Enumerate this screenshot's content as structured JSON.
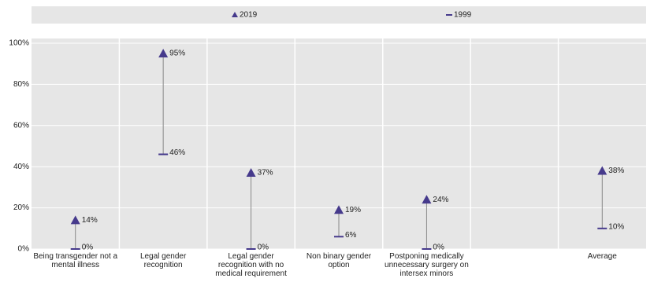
{
  "chart_data": {
    "type": "dumbbell",
    "categories": [
      "Being transgender not a mental illness",
      "Legal gender recognition",
      "Legal gender recognition with no medical requirement",
      "Non binary gender option",
      "Postponing medically unnecessary surgery on intersex minors",
      null,
      "Average"
    ],
    "series": [
      {
        "name": "2019",
        "color": "#463a8c",
        "marker": "triangle",
        "values": [
          14,
          95,
          37,
          19,
          24,
          null,
          38
        ],
        "value_labels": [
          "14%",
          "95%",
          "37%",
          "19%",
          "24%",
          null,
          "38%"
        ]
      },
      {
        "name": "1999",
        "color": "#463a8c",
        "marker": "dash",
        "values": [
          0,
          46,
          0,
          6,
          0,
          null,
          10
        ],
        "value_labels": [
          "0%",
          "46%",
          "0%",
          "6%",
          "0%",
          null,
          "10%"
        ]
      }
    ],
    "ylim": [
      0,
      100
    ],
    "yticks": [
      {
        "value": 0,
        "label": "0%"
      },
      {
        "value": 20,
        "label": "20%"
      },
      {
        "value": 40,
        "label": "40%"
      },
      {
        "value": 60,
        "label": "60%"
      },
      {
        "value": 80,
        "label": "80%"
      },
      {
        "value": 100,
        "label": "100%"
      }
    ],
    "grid": true
  }
}
